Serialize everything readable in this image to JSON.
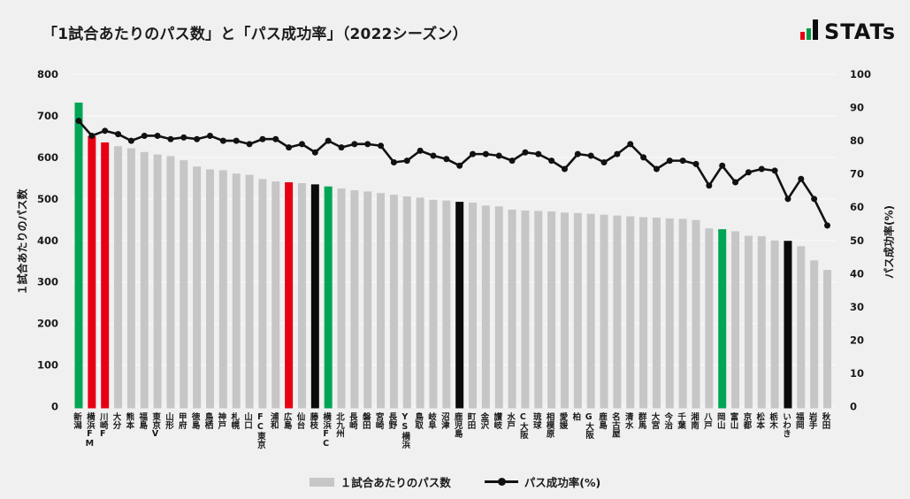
{
  "title": "「1試合あたりのパス数」と「パス成功率」（2022シーズン）",
  "logo": {
    "text": "STATs",
    "icon_colors": [
      "#e60012",
      "#009a44",
      "#0b0b0b"
    ]
  },
  "legend": {
    "bar_label": "１試合あたりのパス数",
    "line_label": "パス成功率(%)"
  },
  "colors": {
    "background": "#f0f0f0",
    "gridline": "#f8f8f8",
    "bar_default": "#c6c6c6",
    "line": "#111111",
    "text": "#1a1a1a",
    "palette": {
      "gray": "#c6c6c6",
      "green": "#00a555",
      "red": "#e60012",
      "black": "#0b0b0b"
    }
  },
  "chart_data": {
    "type": "bar",
    "title": "「1試合あたりのパス数」と「パス成功率」（2022シーズン）",
    "categories": [
      "新潟",
      "横浜FM",
      "川崎F",
      "大分",
      "熊本",
      "福島",
      "東京V",
      "山形",
      "甲府",
      "徳島",
      "鳥栖",
      "神戸",
      "札幌",
      "山口",
      "FC東京",
      "浦和",
      "広島",
      "仙台",
      "藤枝",
      "横浜FC",
      "北九州",
      "長崎",
      "磐田",
      "宮崎",
      "長野",
      "YS横浜",
      "鳥取",
      "岐阜",
      "沼津",
      "鹿児島",
      "町田",
      "金沢",
      "讃岐",
      "水戸",
      "C大阪",
      "琉球",
      "相模原",
      "愛媛",
      "柏",
      "G大阪",
      "鹿島",
      "名古屋",
      "清水",
      "群馬",
      "大宮",
      "今治",
      "千葉",
      "湘南",
      "八戸",
      "岡山",
      "富山",
      "京都",
      "松本",
      "栃木",
      "いわき",
      "福岡",
      "岩手",
      "秋田"
    ],
    "series": [
      {
        "name": "１試合あたりのパス数",
        "type": "bar",
        "axis": "left",
        "values": [
          732,
          651,
          636,
          627,
          622,
          613,
          607,
          603,
          593,
          578,
          571,
          569,
          561,
          558,
          548,
          542,
          540,
          538,
          535,
          530,
          525,
          521,
          518,
          514,
          510,
          506,
          503,
          498,
          496,
          493,
          491,
          484,
          482,
          474,
          472,
          471,
          470,
          467,
          466,
          464,
          462,
          460,
          458,
          456,
          455,
          453,
          452,
          449,
          429,
          427,
          422,
          411,
          410,
          400,
          399,
          386,
          352,
          329
        ],
        "bar_color_keys": [
          "green",
          "red",
          "red",
          "gray",
          "gray",
          "gray",
          "gray",
          "gray",
          "gray",
          "gray",
          "gray",
          "gray",
          "gray",
          "gray",
          "gray",
          "gray",
          "red",
          "gray",
          "black",
          "green",
          "gray",
          "gray",
          "gray",
          "gray",
          "gray",
          "gray",
          "gray",
          "gray",
          "gray",
          "black",
          "gray",
          "gray",
          "gray",
          "gray",
          "gray",
          "gray",
          "gray",
          "gray",
          "gray",
          "gray",
          "gray",
          "gray",
          "gray",
          "gray",
          "gray",
          "gray",
          "gray",
          "gray",
          "gray",
          "green",
          "gray",
          "gray",
          "gray",
          "gray",
          "black",
          "gray",
          "gray",
          "gray"
        ]
      },
      {
        "name": "パス成功率(%)",
        "type": "line",
        "axis": "right",
        "values": [
          86.0,
          81.5,
          83.0,
          82.0,
          80.0,
          81.5,
          81.5,
          80.5,
          81.0,
          80.5,
          81.5,
          80.0,
          80.0,
          79.0,
          80.5,
          80.5,
          78.0,
          79.0,
          76.5,
          80.0,
          78.0,
          79.0,
          79.0,
          78.5,
          73.5,
          74.0,
          77.0,
          75.5,
          74.5,
          72.5,
          76.0,
          76.0,
          75.5,
          74.0,
          76.5,
          76.0,
          74.0,
          71.5,
          76.0,
          75.5,
          73.5,
          76.0,
          79.0,
          75.0,
          71.5,
          74.0,
          74.0,
          73.0,
          66.5,
          72.5,
          67.5,
          70.5,
          71.5,
          71.0,
          62.5,
          68.5,
          62.5,
          54.5
        ]
      }
    ],
    "left_axis": {
      "label": "１試合あたりのパス数",
      "min": 0,
      "max": 800,
      "step": 100,
      "ticks": [
        0,
        100,
        200,
        300,
        400,
        500,
        600,
        700,
        800
      ]
    },
    "right_axis": {
      "label": "パス成功率(%)",
      "min": 0,
      "max": 100,
      "step": 10,
      "ticks": [
        0,
        10,
        20,
        30,
        40,
        50,
        60,
        70,
        80,
        90,
        100
      ]
    },
    "grid": true,
    "legend_position": "bottom"
  }
}
